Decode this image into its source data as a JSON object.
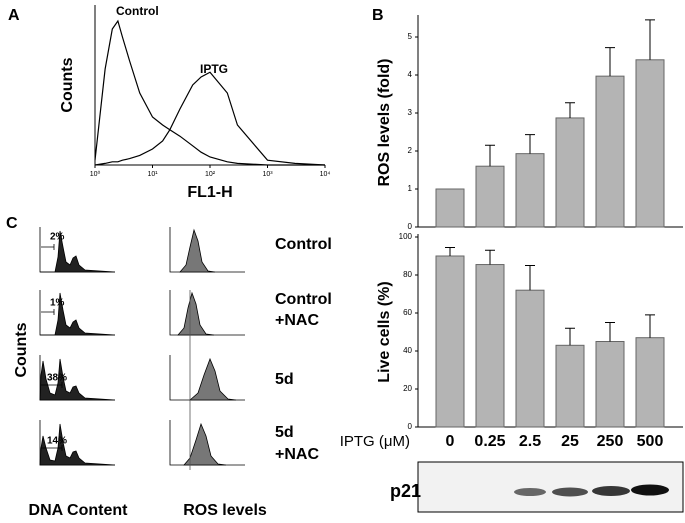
{
  "panel_labels": [
    "A",
    "B",
    "C"
  ],
  "panel_c": {
    "ylabel": "Counts",
    "xlabels": [
      "DNA Content",
      "ROS levels"
    ],
    "rows": [
      {
        "label": [
          "Control"
        ],
        "percent": "2%"
      },
      {
        "label": [
          "Control",
          "+NAC"
        ],
        "percent": "1%"
      },
      {
        "label": [
          "5d"
        ],
        "percent": "38%"
      },
      {
        "label": [
          "5d",
          "+NAC"
        ],
        "percent": "14%"
      }
    ]
  },
  "blot": {
    "label": "p21"
  },
  "chart_data": [
    {
      "type": "line",
      "xlabel": "FL1-H",
      "ylabel": "Counts",
      "log": "x",
      "x": [
        1,
        1.5,
        2,
        2.5,
        3,
        4,
        6,
        10,
        15,
        20,
        30,
        50,
        70,
        100,
        200,
        300,
        1000,
        3000,
        10000
      ],
      "xlim": [
        1,
        10000
      ],
      "xticks": [
        {
          "value": 1,
          "label": "10⁰"
        },
        {
          "value": 10,
          "label": "10¹"
        },
        {
          "value": 100,
          "label": "10²"
        },
        {
          "value": 1000,
          "label": "10³"
        },
        {
          "value": 10000,
          "label": "10⁴"
        }
      ],
      "ylim": [
        0,
        100
      ],
      "series": [
        {
          "name": "Control",
          "color": "#000000",
          "values": [
            3,
            60,
            85,
            90,
            80,
            65,
            45,
            30,
            25,
            22,
            18,
            12,
            8,
            5,
            2,
            1,
            0,
            0,
            0
          ]
        },
        {
          "name": "IPTG",
          "color": "#000000",
          "values": [
            0,
            1,
            2,
            2,
            3,
            4,
            6,
            10,
            15,
            22,
            35,
            50,
            55,
            58,
            45,
            25,
            3,
            1,
            0
          ]
        }
      ]
    },
    {
      "type": "bar",
      "ylabel": "ROS levels (fold)",
      "categories": [
        null,
        null,
        null,
        null,
        null,
        null
      ],
      "values": [
        1,
        1.6,
        1.93,
        2.87,
        3.97,
        4.4
      ],
      "errors": [
        0,
        0.55,
        0.5,
        0.4,
        0.75,
        1.05
      ],
      "color": "#b4b4b4",
      "ylim": [
        0,
        5.5
      ],
      "yticks": [
        0,
        1,
        2,
        3,
        4,
        5
      ]
    },
    {
      "type": "bar",
      "ylabel": "Live cells (%)",
      "xlabel": "IPTG (μM)",
      "categories": [
        "0",
        "0.25",
        "2.5",
        "25",
        "250",
        "500"
      ],
      "values": [
        90,
        85.5,
        72,
        43,
        45,
        47
      ],
      "errors": [
        4.5,
        7.5,
        13,
        9,
        10,
        12
      ],
      "color": "#b4b4b4",
      "ylim": [
        0,
        100
      ],
      "yticks": [
        0,
        20,
        40,
        60,
        80,
        100
      ]
    }
  ]
}
